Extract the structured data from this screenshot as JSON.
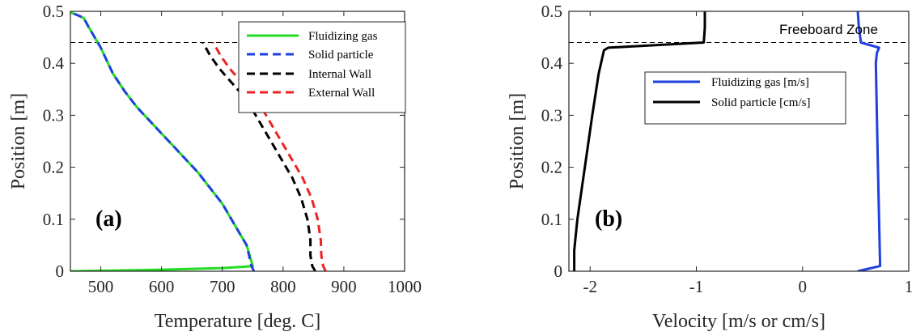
{
  "chart_data": [
    {
      "type": "line",
      "panel_label": "(a)",
      "xlabel": "Temperature [deg. C]",
      "ylabel": "Position [m]",
      "xlim": [
        450,
        1000
      ],
      "ylim": [
        0,
        0.5
      ],
      "xticks": [
        500,
        600,
        700,
        800,
        900,
        1000
      ],
      "yticks": [
        0,
        0.1,
        0.2,
        0.3,
        0.4,
        0.5
      ],
      "grid": false,
      "legend_position": "top-right",
      "reference_line": {
        "y": 0.44,
        "style": "dashed",
        "color": "#000000"
      },
      "series": [
        {
          "name": "Fluidizing gas",
          "color": "#22dd22",
          "dash": "solid",
          "x": [
            450,
            600,
            700,
            740,
            750,
            740,
            720,
            700,
            680,
            660,
            640,
            620,
            600,
            580,
            560,
            540,
            520,
            500,
            490,
            480,
            472,
            463,
            450
          ],
          "y": [
            0.0,
            0.003,
            0.006,
            0.009,
            0.01,
            0.05,
            0.09,
            0.13,
            0.16,
            0.19,
            0.215,
            0.24,
            0.265,
            0.29,
            0.315,
            0.345,
            0.38,
            0.43,
            0.45,
            0.47,
            0.487,
            0.492,
            0.498
          ]
        },
        {
          "name": "Solid particle",
          "color": "#1f3fe0",
          "dash": "dash",
          "x": [
            752,
            748,
            740,
            720,
            700,
            680,
            660,
            640,
            620,
            600,
            580,
            560,
            540,
            520,
            500,
            490,
            480,
            472,
            463,
            450
          ],
          "y": [
            0.0,
            0.01,
            0.05,
            0.09,
            0.13,
            0.16,
            0.19,
            0.215,
            0.24,
            0.265,
            0.29,
            0.315,
            0.345,
            0.38,
            0.43,
            0.45,
            0.47,
            0.487,
            0.492,
            0.498
          ]
        },
        {
          "name": "Internal Wall",
          "color": "#000000",
          "dash": "dash",
          "x": [
            853,
            848,
            845,
            845,
            840,
            830,
            815,
            800,
            785,
            770,
            755,
            740,
            725,
            710,
            695,
            680,
            668
          ],
          "y": [
            0.0,
            0.01,
            0.03,
            0.06,
            0.1,
            0.14,
            0.18,
            0.21,
            0.24,
            0.27,
            0.3,
            0.33,
            0.35,
            0.37,
            0.39,
            0.415,
            0.44
          ]
        },
        {
          "name": "External Wall",
          "color": "#ee2222",
          "dash": "dash",
          "x": [
            870,
            866,
            863,
            862,
            857,
            847,
            832,
            817,
            802,
            787,
            772,
            757,
            742,
            727,
            712,
            697,
            685
          ],
          "y": [
            0.0,
            0.01,
            0.03,
            0.06,
            0.1,
            0.14,
            0.18,
            0.21,
            0.24,
            0.27,
            0.3,
            0.33,
            0.35,
            0.37,
            0.39,
            0.415,
            0.44
          ]
        }
      ]
    },
    {
      "type": "line",
      "panel_label": "(b)",
      "xlabel": "Velocity [m/s or cm/s]",
      "ylabel": "Position [m]",
      "xlim": [
        -2.2,
        1
      ],
      "ylim": [
        0,
        0.5
      ],
      "xticks": [
        -2,
        -1,
        0,
        1
      ],
      "yticks": [
        0,
        0.1,
        0.2,
        0.3,
        0.4,
        0.5
      ],
      "grid": false,
      "legend_position": "upper-center",
      "annotation": "Freeboard Zone",
      "reference_line": {
        "y": 0.44,
        "style": "dashed",
        "color": "#000000"
      },
      "series": [
        {
          "name": "Fluidizing gas [m/s]",
          "color": "#1f3fe0",
          "dash": "solid",
          "x": [
            0.52,
            0.73,
            0.72,
            0.71,
            0.7,
            0.69,
            0.7,
            0.72,
            0.55,
            0.53,
            0.52
          ],
          "y": [
            0.0,
            0.01,
            0.1,
            0.2,
            0.3,
            0.4,
            0.42,
            0.43,
            0.44,
            0.47,
            0.5
          ]
        },
        {
          "name": "Solid particle [cm/s]",
          "color": "#000000",
          "dash": "solid",
          "x": [
            -2.15,
            -2.15,
            -2.12,
            -2.05,
            -1.98,
            -1.92,
            -1.87,
            -1.83,
            -0.93,
            -0.92,
            -0.92
          ],
          "y": [
            0.0,
            0.04,
            0.1,
            0.2,
            0.3,
            0.38,
            0.425,
            0.43,
            0.44,
            0.47,
            0.5
          ]
        }
      ]
    }
  ]
}
